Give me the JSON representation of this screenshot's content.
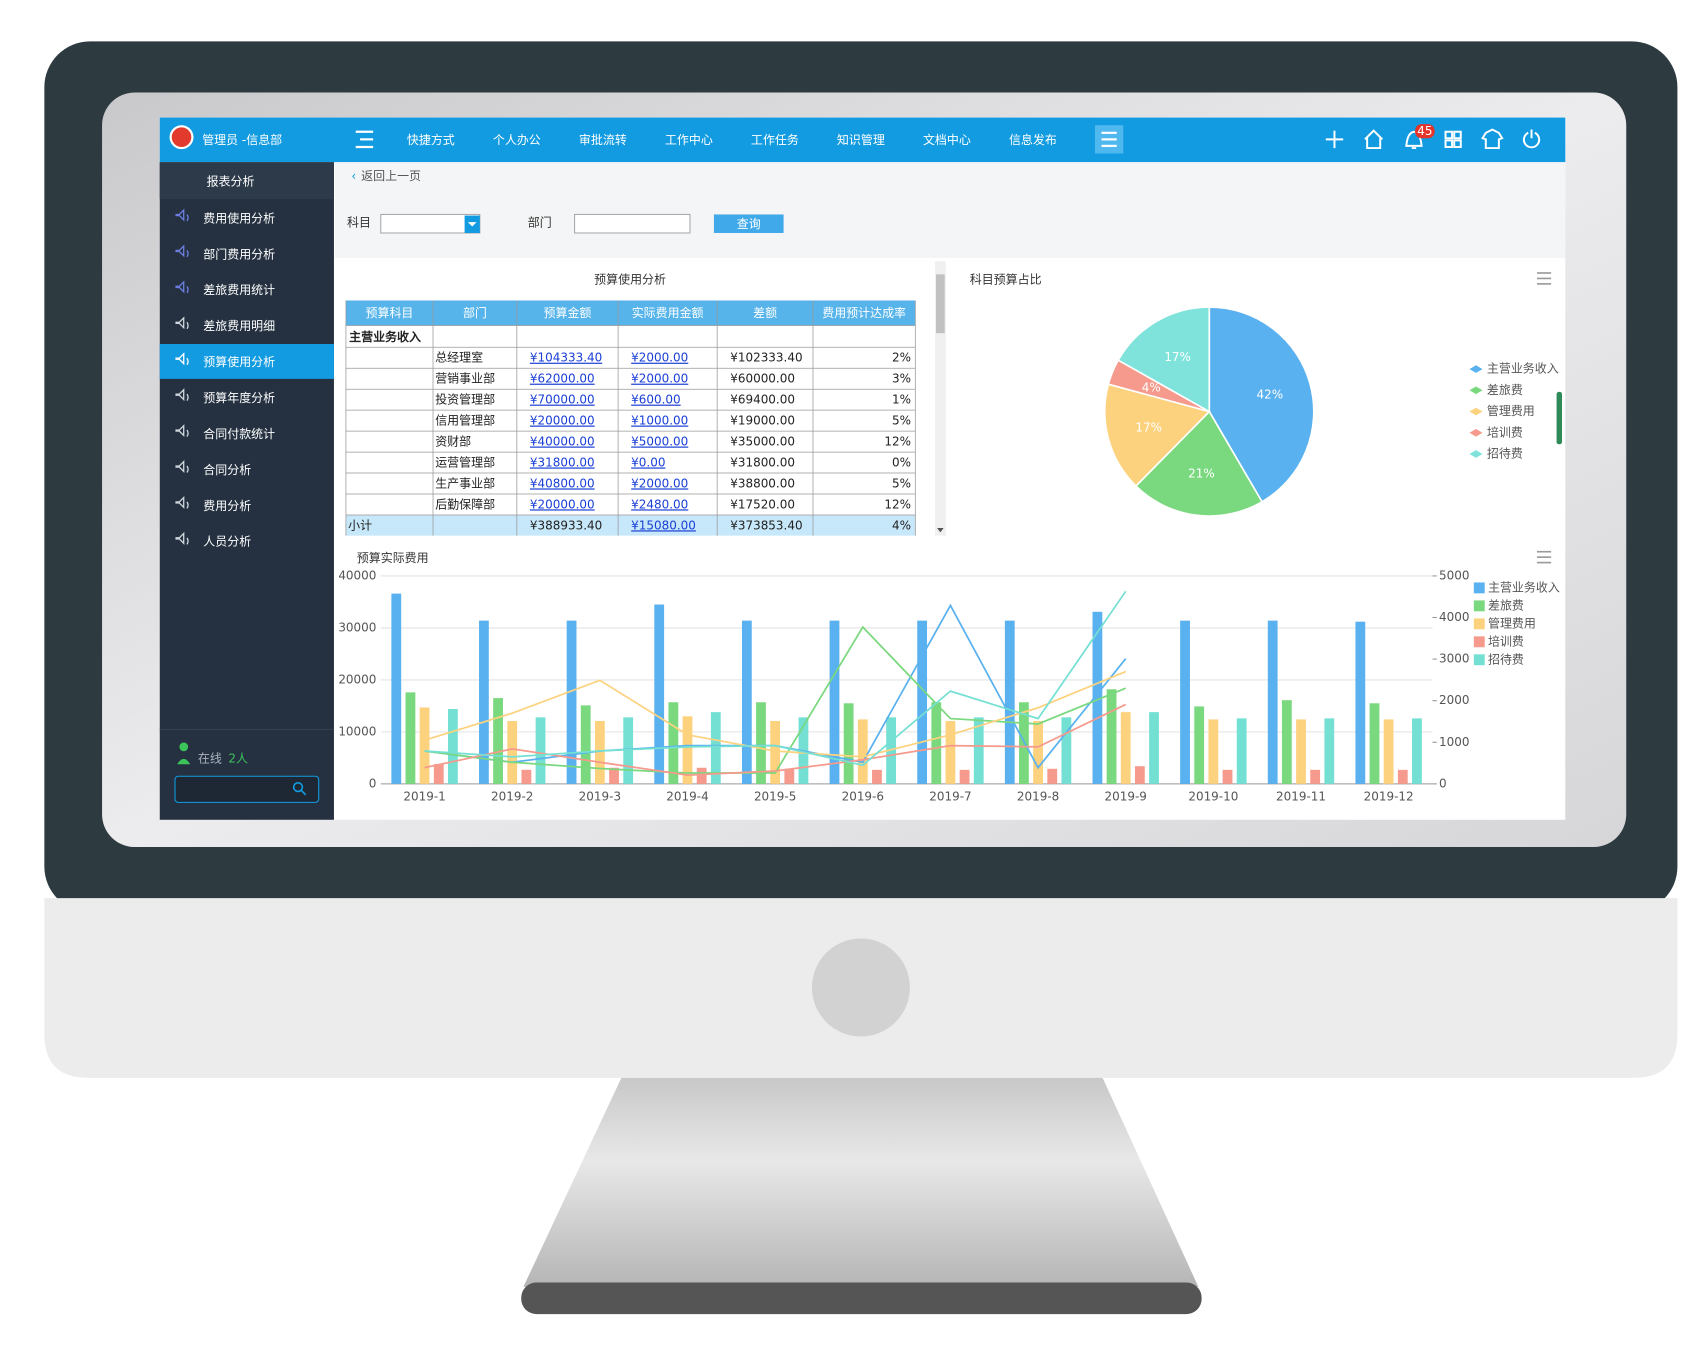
{
  "header": {
    "brand": "管理员 -信息部",
    "nav": [
      "快捷方式",
      "个人办公",
      "审批流转",
      "工作中心",
      "工作任务",
      "知识管理",
      "文档中心",
      "信息发布"
    ],
    "badge": "45"
  },
  "sidebar": {
    "title": "报表分析",
    "items": [
      "费用使用分析",
      "部门费用分析",
      "差旅费用统计",
      "差旅费用明细",
      "预算使用分析",
      "预算年度分析",
      "合同付款统计",
      "合同分析",
      "费用分析",
      "人员分析"
    ],
    "active": 4,
    "online_label": "在线",
    "online_count": "2人"
  },
  "toolbar": {
    "back": "返回上一页",
    "subject_label": "科目",
    "dept_label": "部门",
    "query": "查询"
  },
  "table": {
    "title": "预算使用分析",
    "columns": [
      "预算科目",
      "部门",
      "预算金额",
      "实际费用金额",
      "差额",
      "费用预计达成率"
    ],
    "group": "主营业务收入",
    "rows": [
      [
        "总经理室",
        "¥104333.40",
        "¥2000.00",
        "¥102333.40",
        "2%"
      ],
      [
        "营销事业部",
        "¥62000.00",
        "¥2000.00",
        "¥60000.00",
        "3%"
      ],
      [
        "投资管理部",
        "¥70000.00",
        "¥600.00",
        "¥69400.00",
        "1%"
      ],
      [
        "信用管理部",
        "¥20000.00",
        "¥1000.00",
        "¥19000.00",
        "5%"
      ],
      [
        "资财部",
        "¥40000.00",
        "¥5000.00",
        "¥35000.00",
        "12%"
      ],
      [
        "运营管理部",
        "¥31800.00",
        "¥0.00",
        "¥31800.00",
        "0%"
      ],
      [
        "生产事业部",
        "¥40800.00",
        "¥2000.00",
        "¥38800.00",
        "5%"
      ],
      [
        "后勤保障部",
        "¥20000.00",
        "¥2480.00",
        "¥17520.00",
        "12%"
      ]
    ],
    "subtotal": [
      "小计",
      "¥388933.40",
      "¥15080.00",
      "¥373853.40",
      "4%"
    ]
  },
  "chart_data": [
    {
      "type": "pie",
      "title": "科目预算占比",
      "categories": [
        "主营业务收入",
        "差旅费",
        "管理费用",
        "培训费",
        "招待费"
      ],
      "values": [
        42,
        21,
        17,
        4,
        17
      ],
      "value_labels": [
        "42%",
        "21%",
        "17%",
        "4%",
        "17%"
      ],
      "colors": [
        "#5ab1ef",
        "#7ad87e",
        "#fdd27f",
        "#f59a8c",
        "#7fe3dc"
      ],
      "legend": "right"
    },
    {
      "type": "bar-line",
      "title": "预算实际费用",
      "categories": [
        "2019-1",
        "2019-2",
        "2019-3",
        "2019-4",
        "2019-5",
        "2019-6",
        "2019-7",
        "2019-8",
        "2019-9",
        "2019-10",
        "2019-11",
        "2019-12"
      ],
      "ylim": [
        0,
        40000
      ],
      "yticks": [
        0,
        10000,
        20000,
        30000,
        40000
      ],
      "y2lim": [
        0,
        5000
      ],
      "y2ticks": [
        0,
        1000,
        2000,
        3000,
        4000,
        5000
      ],
      "grid": true,
      "legend": "right",
      "series": [
        {
          "name": "主营业务收入",
          "color": "#5ab1ef",
          "values": [
            36600,
            31400,
            31400,
            34500,
            31400,
            31400,
            31400,
            31400,
            33100,
            31400,
            31400,
            31200
          ],
          "line_values": [
            790,
            520,
            790,
            920,
            920,
            520,
            4290,
            390,
            3010,
            null,
            null,
            null
          ]
        },
        {
          "name": "差旅费",
          "color": "#7ad87e",
          "values": [
            17600,
            16500,
            15100,
            15700,
            15700,
            15500,
            15700,
            15700,
            18200,
            14900,
            16100,
            15500
          ],
          "line_values": [
            790,
            520,
            370,
            260,
            260,
            3770,
            1570,
            1440,
            2300,
            null,
            null,
            null
          ]
        },
        {
          "name": "管理费用",
          "color": "#fdd27f",
          "values": [
            14700,
            12100,
            12100,
            13000,
            12100,
            12400,
            12100,
            12100,
            13800,
            12400,
            12400,
            12400
          ],
          "line_values": [
            1050,
            1700,
            2490,
            1180,
            790,
            650,
            1180,
            1830,
            2700,
            null,
            null,
            null
          ]
        },
        {
          "name": "培训费",
          "color": "#f59a8c",
          "values": [
            3800,
            2700,
            3100,
            3100,
            2900,
            2700,
            2700,
            2900,
            3400,
            2700,
            2700,
            2700
          ],
          "line_values": [
            390,
            840,
            520,
            210,
            310,
            580,
            920,
            890,
            1910,
            null,
            null,
            null
          ]
        },
        {
          "name": "招待费",
          "color": "#74dfd3",
          "values": [
            14400,
            12800,
            12800,
            13800,
            12800,
            12800,
            12800,
            12800,
            13800,
            12600,
            12600,
            12600
          ],
          "line_values": [
            790,
            650,
            790,
            890,
            920,
            450,
            2230,
            1570,
            4630,
            null,
            null,
            null
          ]
        }
      ]
    }
  ]
}
